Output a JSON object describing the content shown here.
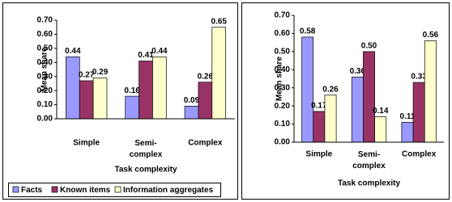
{
  "chart_data": [
    {
      "type": "bar",
      "x_label": "Task complexity",
      "y_label": "Mean share",
      "categories": [
        "Simple",
        "Semi-complex",
        "Complex"
      ],
      "series": [
        {
          "name": "Facts",
          "color": "#9999ff",
          "values": [
            0.44,
            0.16,
            0.09
          ]
        },
        {
          "name": "Known items",
          "color": "#993366",
          "values": [
            0.27,
            0.41,
            0.26
          ]
        },
        {
          "name": "Information aggregates",
          "color": "#ffffcc",
          "values": [
            0.29,
            0.44,
            0.65
          ]
        }
      ],
      "ylim": [
        0,
        0.7
      ],
      "yticks": [
        {
          "value": 0,
          "label": "0.00"
        },
        {
          "value": 0.1,
          "label": "0.10"
        },
        {
          "value": 0.2,
          "label": "0.20"
        },
        {
          "value": 0.3,
          "label": "0.30"
        },
        {
          "value": 0.4,
          "label": "0.40"
        },
        {
          "value": 0.5,
          "label": "0.50"
        },
        {
          "value": 0.6,
          "label": "0.60"
        },
        {
          "value": 0.7,
          "label": "0.70"
        }
      ],
      "legend": "bottom"
    },
    {
      "type": "bar",
      "x_label": "Task complexity",
      "y_label": "Mean share",
      "categories": [
        "Simple",
        "Semi-complex",
        "Complex"
      ],
      "series": [
        {
          "color": "#9999ff",
          "values": [
            0.58,
            0.36,
            0.11
          ]
        },
        {
          "color": "#993366",
          "values": [
            0.17,
            0.5,
            0.33
          ],
          "value_labels": [
            "0.17",
            "0.50",
            "0.33"
          ]
        },
        {
          "color": "#ffffcc",
          "values": [
            0.26,
            0.14,
            0.56
          ]
        }
      ],
      "ylim": [
        0,
        0.7
      ],
      "yticks": [
        {
          "value": 0,
          "label": "0.00"
        },
        {
          "value": 0.1,
          "label": "0.10"
        },
        {
          "value": 0.2,
          "label": "0.20"
        },
        {
          "value": 0.3,
          "label": "0.30"
        },
        {
          "value": 0.4,
          "label": "0.40"
        },
        {
          "value": 0.5,
          "label": "0.50"
        },
        {
          "value": 0.6,
          "label": "0.60"
        },
        {
          "value": 0.7,
          "label": "0.70"
        }
      ]
    }
  ]
}
